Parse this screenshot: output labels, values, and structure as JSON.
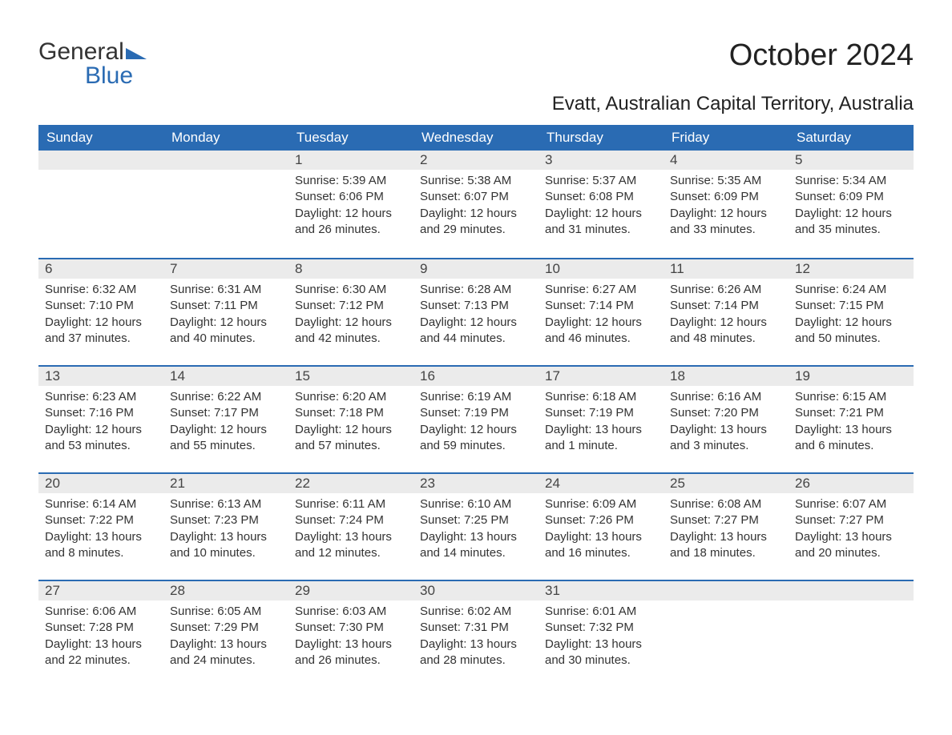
{
  "logo": {
    "text1": "General",
    "text2": "Blue",
    "color_dark": "#333333",
    "color_blue": "#2a6bb3"
  },
  "title": "October 2024",
  "location": "Evatt, Australian Capital Territory, Australia",
  "colors": {
    "header_bg": "#2a6bb3",
    "header_text": "#ffffff",
    "dayheader_bg": "#ebebeb",
    "dayheader_border": "#2a6bb3",
    "body_text": "#333333",
    "background": "#ffffff"
  },
  "dayNames": [
    "Sunday",
    "Monday",
    "Tuesday",
    "Wednesday",
    "Thursday",
    "Friday",
    "Saturday"
  ],
  "weeks": [
    [
      {
        "blank": true
      },
      {
        "blank": true
      },
      {
        "day": "1",
        "sunrise": "5:39 AM",
        "sunset": "6:06 PM",
        "daylight": "12 hours and 26 minutes."
      },
      {
        "day": "2",
        "sunrise": "5:38 AM",
        "sunset": "6:07 PM",
        "daylight": "12 hours and 29 minutes."
      },
      {
        "day": "3",
        "sunrise": "5:37 AM",
        "sunset": "6:08 PM",
        "daylight": "12 hours and 31 minutes."
      },
      {
        "day": "4",
        "sunrise": "5:35 AM",
        "sunset": "6:09 PM",
        "daylight": "12 hours and 33 minutes."
      },
      {
        "day": "5",
        "sunrise": "5:34 AM",
        "sunset": "6:09 PM",
        "daylight": "12 hours and 35 minutes."
      }
    ],
    [
      {
        "day": "6",
        "sunrise": "6:32 AM",
        "sunset": "7:10 PM",
        "daylight": "12 hours and 37 minutes."
      },
      {
        "day": "7",
        "sunrise": "6:31 AM",
        "sunset": "7:11 PM",
        "daylight": "12 hours and 40 minutes."
      },
      {
        "day": "8",
        "sunrise": "6:30 AM",
        "sunset": "7:12 PM",
        "daylight": "12 hours and 42 minutes."
      },
      {
        "day": "9",
        "sunrise": "6:28 AM",
        "sunset": "7:13 PM",
        "daylight": "12 hours and 44 minutes."
      },
      {
        "day": "10",
        "sunrise": "6:27 AM",
        "sunset": "7:14 PM",
        "daylight": "12 hours and 46 minutes."
      },
      {
        "day": "11",
        "sunrise": "6:26 AM",
        "sunset": "7:14 PM",
        "daylight": "12 hours and 48 minutes."
      },
      {
        "day": "12",
        "sunrise": "6:24 AM",
        "sunset": "7:15 PM",
        "daylight": "12 hours and 50 minutes."
      }
    ],
    [
      {
        "day": "13",
        "sunrise": "6:23 AM",
        "sunset": "7:16 PM",
        "daylight": "12 hours and 53 minutes."
      },
      {
        "day": "14",
        "sunrise": "6:22 AM",
        "sunset": "7:17 PM",
        "daylight": "12 hours and 55 minutes."
      },
      {
        "day": "15",
        "sunrise": "6:20 AM",
        "sunset": "7:18 PM",
        "daylight": "12 hours and 57 minutes."
      },
      {
        "day": "16",
        "sunrise": "6:19 AM",
        "sunset": "7:19 PM",
        "daylight": "12 hours and 59 minutes."
      },
      {
        "day": "17",
        "sunrise": "6:18 AM",
        "sunset": "7:19 PM",
        "daylight": "13 hours and 1 minute."
      },
      {
        "day": "18",
        "sunrise": "6:16 AM",
        "sunset": "7:20 PM",
        "daylight": "13 hours and 3 minutes."
      },
      {
        "day": "19",
        "sunrise": "6:15 AM",
        "sunset": "7:21 PM",
        "daylight": "13 hours and 6 minutes."
      }
    ],
    [
      {
        "day": "20",
        "sunrise": "6:14 AM",
        "sunset": "7:22 PM",
        "daylight": "13 hours and 8 minutes."
      },
      {
        "day": "21",
        "sunrise": "6:13 AM",
        "sunset": "7:23 PM",
        "daylight": "13 hours and 10 minutes."
      },
      {
        "day": "22",
        "sunrise": "6:11 AM",
        "sunset": "7:24 PM",
        "daylight": "13 hours and 12 minutes."
      },
      {
        "day": "23",
        "sunrise": "6:10 AM",
        "sunset": "7:25 PM",
        "daylight": "13 hours and 14 minutes."
      },
      {
        "day": "24",
        "sunrise": "6:09 AM",
        "sunset": "7:26 PM",
        "daylight": "13 hours and 16 minutes."
      },
      {
        "day": "25",
        "sunrise": "6:08 AM",
        "sunset": "7:27 PM",
        "daylight": "13 hours and 18 minutes."
      },
      {
        "day": "26",
        "sunrise": "6:07 AM",
        "sunset": "7:27 PM",
        "daylight": "13 hours and 20 minutes."
      }
    ],
    [
      {
        "day": "27",
        "sunrise": "6:06 AM",
        "sunset": "7:28 PM",
        "daylight": "13 hours and 22 minutes."
      },
      {
        "day": "28",
        "sunrise": "6:05 AM",
        "sunset": "7:29 PM",
        "daylight": "13 hours and 24 minutes."
      },
      {
        "day": "29",
        "sunrise": "6:03 AM",
        "sunset": "7:30 PM",
        "daylight": "13 hours and 26 minutes."
      },
      {
        "day": "30",
        "sunrise": "6:02 AM",
        "sunset": "7:31 PM",
        "daylight": "13 hours and 28 minutes."
      },
      {
        "day": "31",
        "sunrise": "6:01 AM",
        "sunset": "7:32 PM",
        "daylight": "13 hours and 30 minutes."
      },
      {
        "blank": true
      },
      {
        "blank": true
      }
    ]
  ],
  "labels": {
    "sunrise": "Sunrise: ",
    "sunset": "Sunset: ",
    "daylight": "Daylight: "
  }
}
